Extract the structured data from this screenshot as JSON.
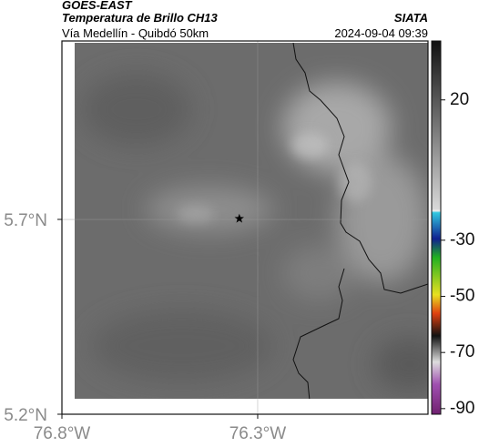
{
  "header": {
    "satellite": "GOES-EAST",
    "product": "Temperatura de Brillo CH13",
    "route": "Vía Medellín - Quibdó 50km",
    "agency": "SIATA",
    "timestamp": "2024-09-04 09:39"
  },
  "map": {
    "xlim": [
      -76.8,
      -75.865
    ],
    "ylim": [
      5.2,
      6.158
    ],
    "xticks": [
      {
        "value": -76.8,
        "label": "76.8°W"
      },
      {
        "value": -76.3,
        "label": "76.3°W"
      }
    ],
    "yticks": [
      {
        "value": 5.7,
        "label": "5.7°N"
      },
      {
        "value": 5.2,
        "label": "5.2°N"
      }
    ],
    "grid": true,
    "marker": {
      "lon": -76.347,
      "lat": 5.702
    }
  },
  "colorbar": {
    "lim": [
      -92,
      41
    ],
    "ticks": [
      20,
      -30,
      -50,
      -70,
      -90
    ]
  }
}
